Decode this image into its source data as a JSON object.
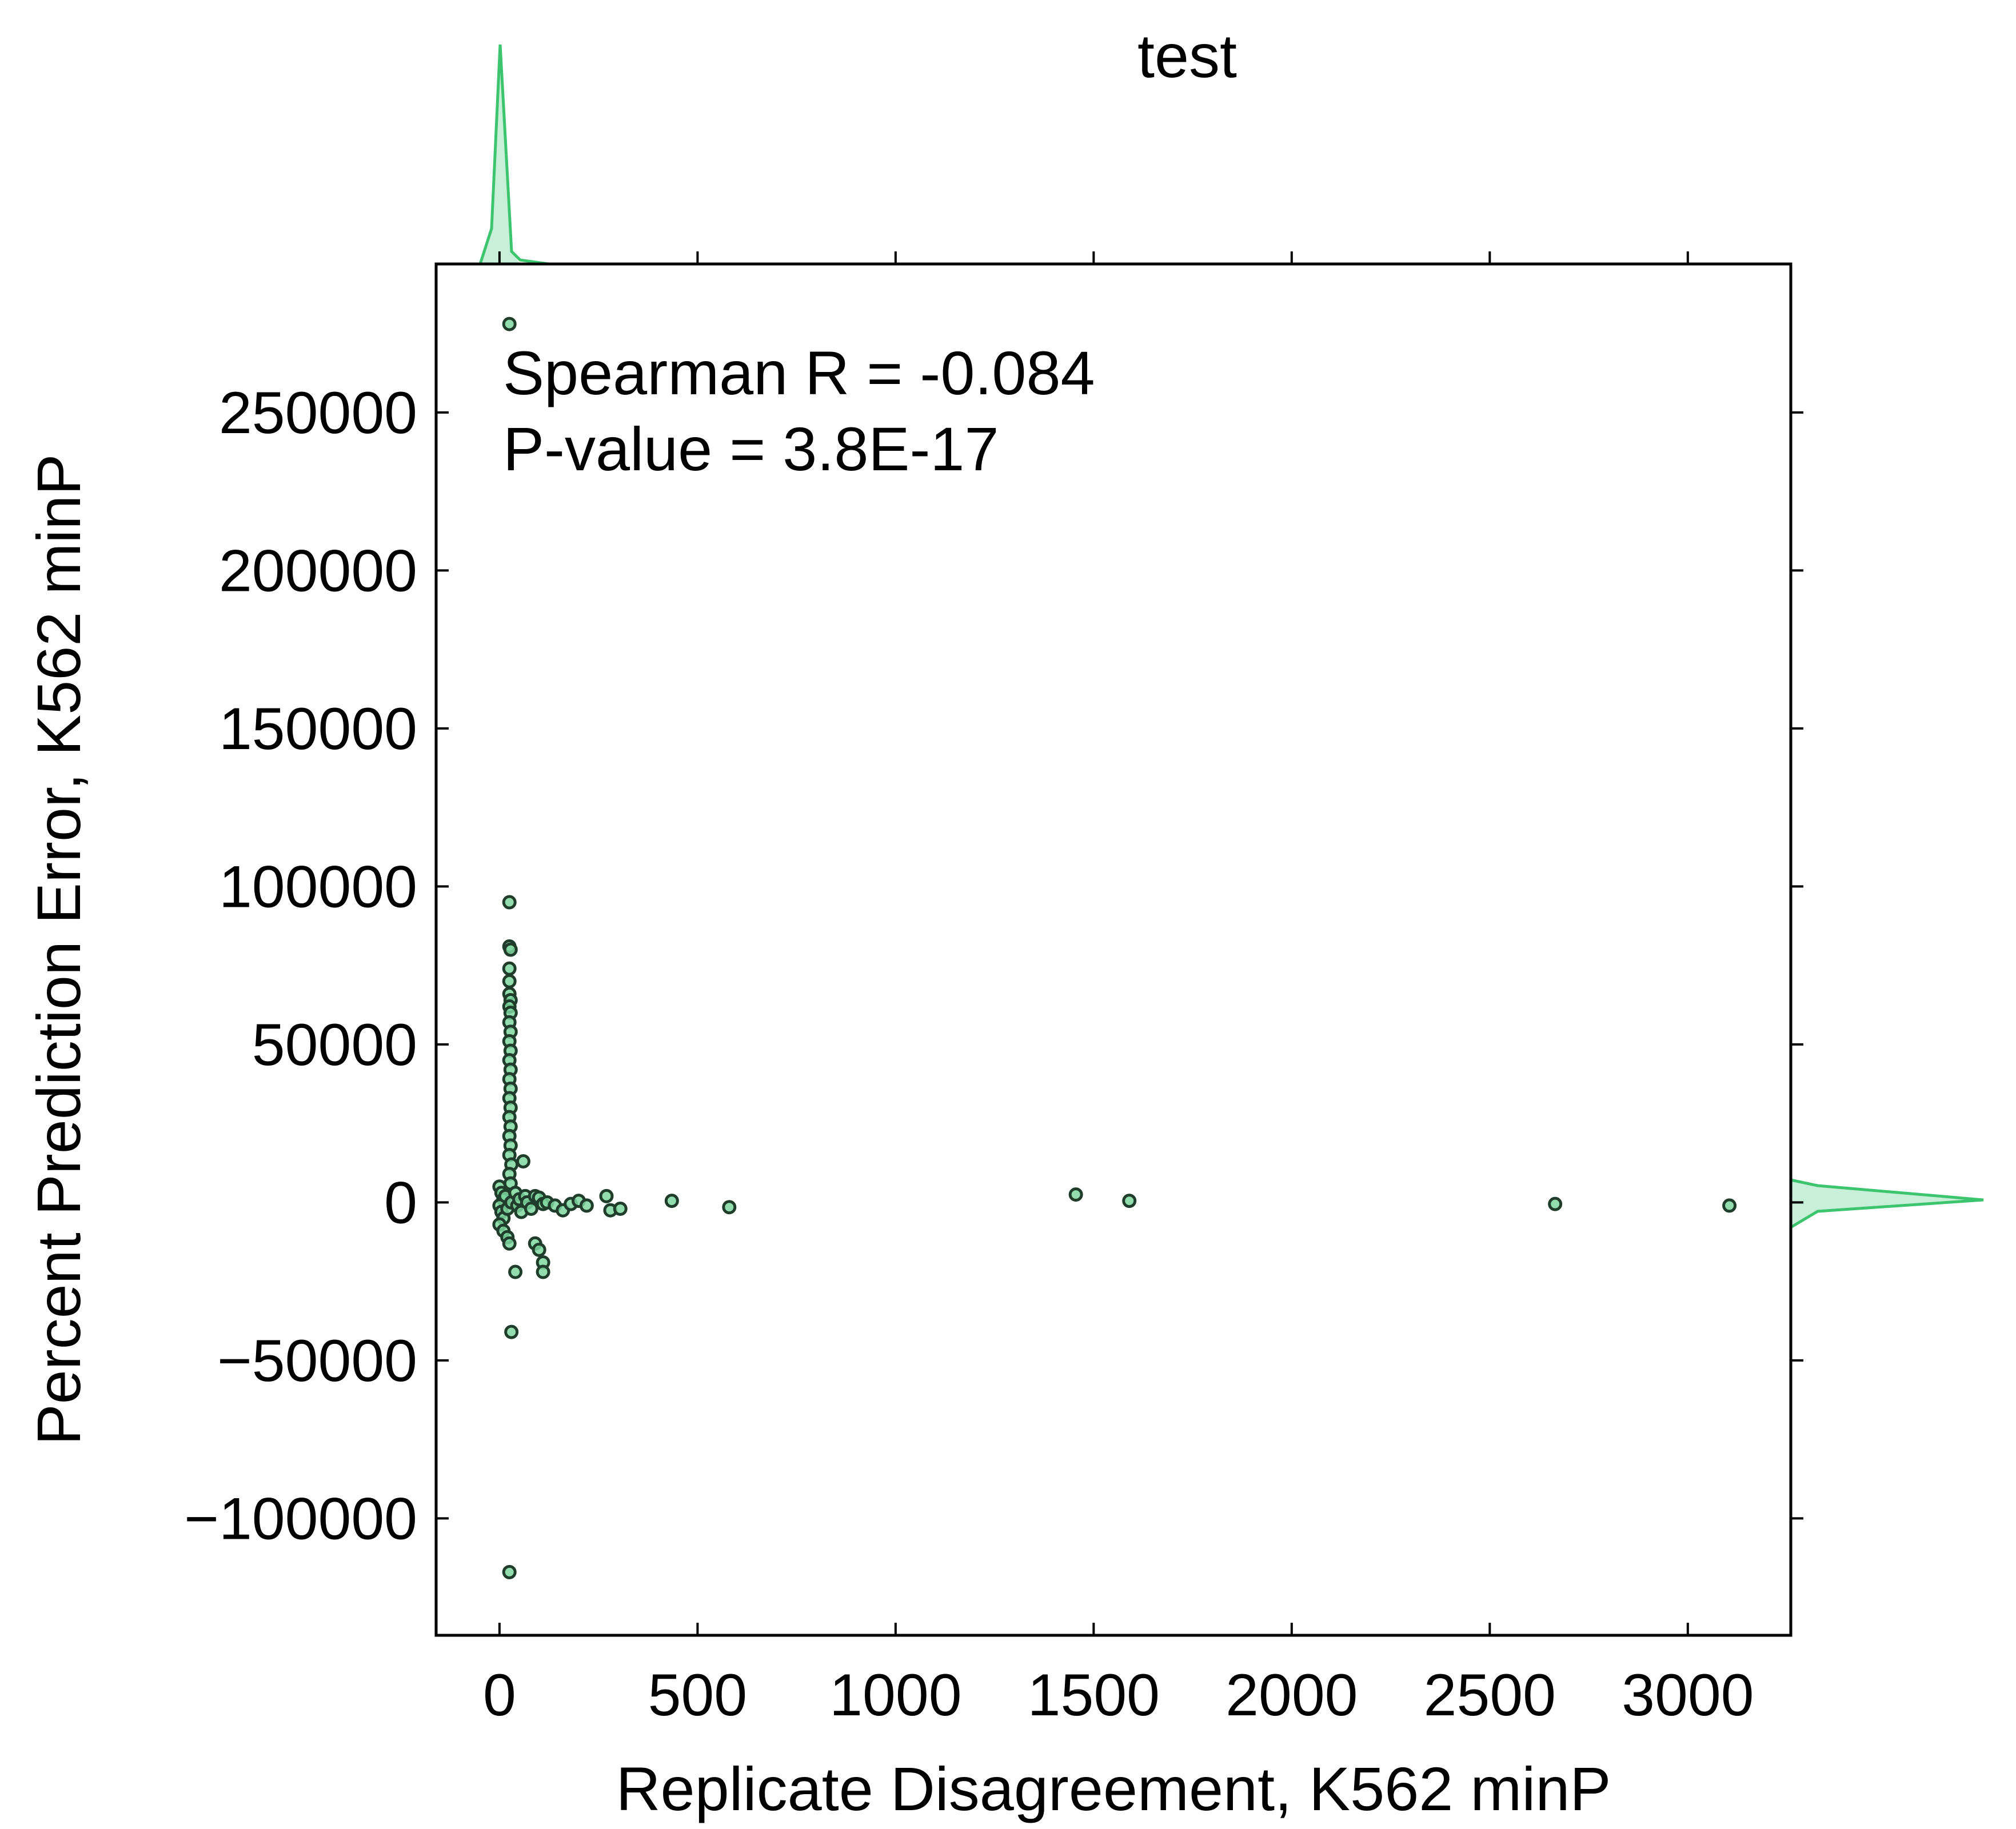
{
  "chart_data": {
    "type": "scatter",
    "title": "test",
    "xlabel": "Replicate Disagreement, K562 minP",
    "ylabel": "Percent Prediction Error, K562 minP",
    "xlim": [
      -160,
      3260
    ],
    "ylim": [
      -137000,
      297000
    ],
    "xticks": [
      0,
      500,
      1000,
      1500,
      2000,
      2500,
      3000
    ],
    "xtick_labels": [
      "0",
      "500",
      "1000",
      "1500",
      "2000",
      "2500",
      "3000"
    ],
    "yticks": [
      -100000,
      -50000,
      0,
      50000,
      100000,
      150000,
      200000,
      250000
    ],
    "ytick_labels": [
      "−100000",
      "−50000",
      "0",
      "50000",
      "100000",
      "150000",
      "200000",
      "250000"
    ],
    "annotations": [
      "Spearman R = -0.084",
      "P-value = 3.8E-17"
    ],
    "grid": false,
    "legend": "none",
    "marginals": "kde on top (x) and right (y)",
    "colors": {
      "points_fill": "#7fd6a0",
      "points_edge": "#1f3d2a",
      "kde_line": "#3dc46e",
      "kde_fill": "#c8efd7",
      "frame": "#000000"
    },
    "series": [
      {
        "values": [
          [
            25,
            278000
          ],
          [
            25,
            95000
          ],
          [
            25,
            81000
          ],
          [
            28,
            80000
          ],
          [
            25,
            74000
          ],
          [
            25,
            70000
          ],
          [
            25,
            66000
          ],
          [
            28,
            64000
          ],
          [
            25,
            62000
          ],
          [
            28,
            60000
          ],
          [
            25,
            57000
          ],
          [
            28,
            54000
          ],
          [
            25,
            51000
          ],
          [
            28,
            48000
          ],
          [
            25,
            45000
          ],
          [
            28,
            42000
          ],
          [
            25,
            39000
          ],
          [
            28,
            36000
          ],
          [
            25,
            33000
          ],
          [
            28,
            30000
          ],
          [
            25,
            27000
          ],
          [
            28,
            24000
          ],
          [
            25,
            21000
          ],
          [
            28,
            18000
          ],
          [
            25,
            15000
          ],
          [
            30,
            12000
          ],
          [
            25,
            9000
          ],
          [
            28,
            6000
          ],
          [
            60,
            13000
          ],
          [
            0,
            5000
          ],
          [
            5,
            3000
          ],
          [
            10,
            1000
          ],
          [
            0,
            -1000
          ],
          [
            5,
            -3000
          ],
          [
            10,
            -5000
          ],
          [
            0,
            -7000
          ],
          [
            15,
            2000
          ],
          [
            20,
            -2000
          ],
          [
            30,
            0
          ],
          [
            40,
            3000
          ],
          [
            45,
            -1000
          ],
          [
            50,
            1000
          ],
          [
            55,
            -3000
          ],
          [
            65,
            2000
          ],
          [
            70,
            0
          ],
          [
            80,
            -2000
          ],
          [
            90,
            2000
          ],
          [
            100,
            1500
          ],
          [
            110,
            -500
          ],
          [
            120,
            0
          ],
          [
            140,
            -1000
          ],
          [
            160,
            -2500
          ],
          [
            180,
            -500
          ],
          [
            200,
            500
          ],
          [
            220,
            -1000
          ],
          [
            10,
            -9000
          ],
          [
            20,
            -11000
          ],
          [
            25,
            -13000
          ],
          [
            90,
            -13000
          ],
          [
            100,
            -15000
          ],
          [
            110,
            -19000
          ],
          [
            40,
            -22000
          ],
          [
            110,
            -22000
          ],
          [
            30,
            -41000
          ],
          [
            25,
            -117000
          ],
          [
            270,
            2000
          ],
          [
            280,
            -2500
          ],
          [
            305,
            -2000
          ],
          [
            435,
            500
          ],
          [
            580,
            -1500
          ],
          [
            1455,
            2500
          ],
          [
            1590,
            500
          ],
          [
            2665,
            -500
          ],
          [
            3105,
            -1000
          ]
        ]
      }
    ]
  }
}
